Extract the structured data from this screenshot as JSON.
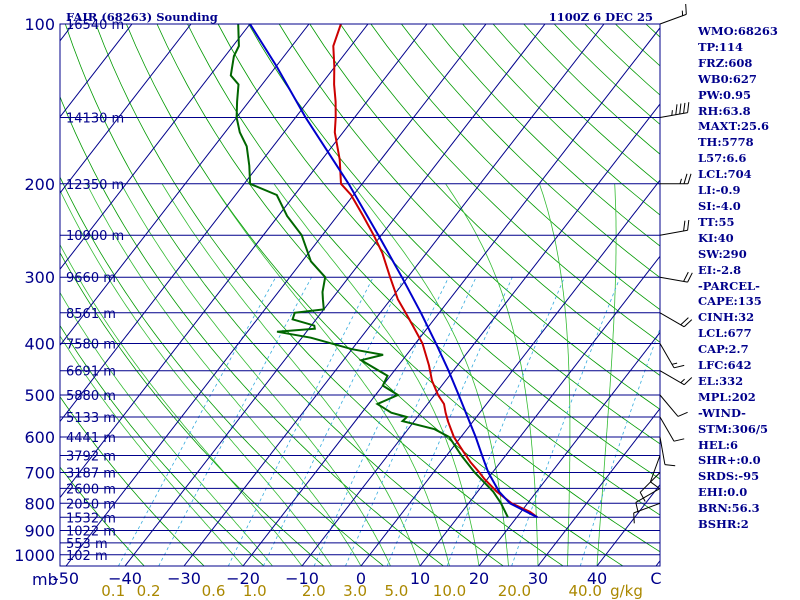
{
  "header": {
    "title": "FAIR (68263) Sounding",
    "time": "1100Z  6 DEC 25"
  },
  "colors": {
    "background": "#ffffff",
    "frame": "#00008b",
    "isobar": "#00008b",
    "isotherm": "#00008b",
    "dry_adiabat": "#009900",
    "moist_adiabat": "#33bb33",
    "mixing_ratio": "#33aadd",
    "temperature": "#cc0000",
    "dewpoint": "#006600",
    "parcel": "#0000cc",
    "axis_text": "#00008b",
    "mixing_ratio_text": "#aa8800",
    "wind": "#000000"
  },
  "chart_data": {
    "type": "line",
    "title": "FAIR (68263) Sounding",
    "subtitle": "1100Z  6 DEC 25",
    "xlabel": "C",
    "ylabel": "mb",
    "xlim": [
      -50,
      50
    ],
    "ylim": [
      1000,
      100
    ],
    "pressure_ticks": [
      100,
      200,
      300,
      400,
      500,
      600,
      700,
      800,
      900,
      1000
    ],
    "temperature_ticks": [
      -50,
      -40,
      -30,
      -20,
      -10,
      0,
      10,
      20,
      30,
      40
    ],
    "temperature_tick_labels": [
      "-50",
      "−40",
      "−30",
      "−20",
      "−10",
      "0",
      "10",
      "20",
      "30",
      "40"
    ],
    "mixing_ratio_labels": [
      {
        "text": "0.1",
        "t": -42
      },
      {
        "text": "0.2",
        "t": -36
      },
      {
        "text": "0.6",
        "t": -25
      },
      {
        "text": "1.0",
        "t": -18
      },
      {
        "text": "2.0",
        "t": -8
      },
      {
        "text": "3.0",
        "t": -1
      },
      {
        "text": "5.0",
        "t": 6
      },
      {
        "text": "10.0",
        "t": 15
      },
      {
        "text": "20.0",
        "t": 26
      },
      {
        "text": "40.0",
        "t": 38
      },
      {
        "text": "g/kg",
        "t": 45
      }
    ],
    "height_labels": [
      {
        "p": 100,
        "text": "16540 m"
      },
      {
        "p": 150,
        "text": "14130 m"
      },
      {
        "p": 200,
        "text": "12350 m"
      },
      {
        "p": 250,
        "text": "10900 m"
      },
      {
        "p": 300,
        "text": "9660 m"
      },
      {
        "p": 350,
        "text": "8561 m"
      },
      {
        "p": 400,
        "text": "7580 m"
      },
      {
        "p": 450,
        "text": "6691 m"
      },
      {
        "p": 500,
        "text": "5880 m"
      },
      {
        "p": 550,
        "text": "5133 m"
      },
      {
        "p": 600,
        "text": "4441 m"
      },
      {
        "p": 650,
        "text": "3792 m"
      },
      {
        "p": 700,
        "text": "3187 m"
      },
      {
        "p": 750,
        "text": "2600 m"
      },
      {
        "p": 800,
        "text": "2050 m"
      },
      {
        "p": 850,
        "text": "1532 m"
      },
      {
        "p": 900,
        "text": "1022 m"
      },
      {
        "p": 950,
        "text": "553 m"
      },
      {
        "p": 1000,
        "text": "102 m"
      }
    ],
    "series": [
      {
        "name": "Temperature",
        "color": "#cc0000",
        "points": [
          [
            850,
            23.5
          ],
          [
            830,
            21.5
          ],
          [
            800,
            17.3
          ],
          [
            760,
            13.2
          ],
          [
            720,
            9.5
          ],
          [
            700,
            7.8
          ],
          [
            670,
            5.0
          ],
          [
            640,
            2.4
          ],
          [
            600,
            -1.2
          ],
          [
            560,
            -4.3
          ],
          [
            540,
            -5.8
          ],
          [
            520,
            -7.2
          ],
          [
            500,
            -9.4
          ],
          [
            470,
            -12.3
          ],
          [
            440,
            -14.8
          ],
          [
            400,
            -18.8
          ],
          [
            370,
            -22.8
          ],
          [
            350,
            -25.7
          ],
          [
            330,
            -28.8
          ],
          [
            300,
            -33.0
          ],
          [
            270,
            -37.5
          ],
          [
            250,
            -41.3
          ],
          [
            230,
            -45.6
          ],
          [
            210,
            -50.4
          ],
          [
            200,
            -53.6
          ],
          [
            180,
            -57.0
          ],
          [
            160,
            -61.4
          ],
          [
            150,
            -63.2
          ],
          [
            140,
            -65.3
          ],
          [
            130,
            -67.8
          ],
          [
            120,
            -70.2
          ],
          [
            110,
            -73.0
          ],
          [
            100,
            -74.6
          ]
        ]
      },
      {
        "name": "Dewpoint",
        "color": "#006600",
        "points": [
          [
            850,
            18.5
          ],
          [
            800,
            15.5
          ],
          [
            760,
            12.6
          ],
          [
            700,
            7.0
          ],
          [
            650,
            2.5
          ],
          [
            600,
            -2.0
          ],
          [
            580,
            -5.5
          ],
          [
            560,
            -12.0
          ],
          [
            550,
            -11.8
          ],
          [
            540,
            -15.0
          ],
          [
            520,
            -18.5
          ],
          [
            500,
            -16.2
          ],
          [
            480,
            -20.0
          ],
          [
            460,
            -20.5
          ],
          [
            430,
            -27.0
          ],
          [
            420,
            -24.0
          ],
          [
            410,
            -30.0
          ],
          [
            390,
            -38.5
          ],
          [
            380,
            -45.0
          ],
          [
            375,
            -39.0
          ],
          [
            370,
            -39.5
          ],
          [
            360,
            -44.0
          ],
          [
            350,
            -44.5
          ],
          [
            345,
            -40.0
          ],
          [
            330,
            -41.5
          ],
          [
            320,
            -42.5
          ],
          [
            300,
            -44.0
          ],
          [
            280,
            -48.5
          ],
          [
            250,
            -53.5
          ],
          [
            230,
            -58.5
          ],
          [
            210,
            -63.0
          ],
          [
            200,
            -69.0
          ],
          [
            185,
            -71.5
          ],
          [
            170,
            -74.5
          ],
          [
            160,
            -77.5
          ],
          [
            150,
            -80.0
          ],
          [
            140,
            -82.0
          ],
          [
            130,
            -84.0
          ],
          [
            125,
            -86.5
          ],
          [
            115,
            -88.5
          ],
          [
            110,
            -89.0
          ],
          [
            100,
            -92.0
          ]
        ]
      },
      {
        "name": "Parcel",
        "color": "#0000cc",
        "points": [
          [
            850,
            23.5
          ],
          [
            800,
            17.0
          ],
          [
            760,
            13.6
          ],
          [
            700,
            9.3
          ],
          [
            650,
            6.0
          ],
          [
            600,
            2.5
          ],
          [
            550,
            -1.5
          ],
          [
            500,
            -5.9
          ],
          [
            450,
            -10.8
          ],
          [
            400,
            -16.5
          ],
          [
            350,
            -23.1
          ],
          [
            300,
            -31.0
          ],
          [
            250,
            -40.5
          ],
          [
            200,
            -52.3
          ],
          [
            150,
            -68.3
          ],
          [
            120,
            -80.0
          ],
          [
            100,
            -90.0
          ]
        ]
      }
    ],
    "wind_barbs": [
      {
        "p": 100,
        "dir": 250,
        "kt": 15
      },
      {
        "p": 150,
        "dir": 260,
        "kt": 45
      },
      {
        "p": 200,
        "dir": 270,
        "kt": 25
      },
      {
        "p": 250,
        "dir": 260,
        "kt": 20
      },
      {
        "p": 300,
        "dir": 280,
        "kt": 20
      },
      {
        "p": 350,
        "dir": 300,
        "kt": 20
      },
      {
        "p": 400,
        "dir": 330,
        "kt": 15
      },
      {
        "p": 450,
        "dir": 300,
        "kt": 15
      },
      {
        "p": 500,
        "dir": 320,
        "kt": 10
      },
      {
        "p": 550,
        "dir": 330,
        "kt": 10
      },
      {
        "p": 600,
        "dir": 350,
        "kt": 10
      },
      {
        "p": 650,
        "dir": 20,
        "kt": 10
      },
      {
        "p": 700,
        "dir": 45,
        "kt": 10
      },
      {
        "p": 750,
        "dir": 60,
        "kt": 10
      },
      {
        "p": 800,
        "dir": 70,
        "kt": 10
      }
    ]
  },
  "indices": [
    "WMO:68263",
    "TP:114",
    "FRZ:608",
    "WB0:627",
    "PW:0.95",
    "RH:63.8",
    "MAXT:25.6",
    "TH:5778",
    "L57:6.6",
    "LCL:704",
    "LI:-0.9",
    "SI:-4.0",
    "TT:55",
    "KI:40",
    "SW:290",
    "EI:-2.8",
    "-PARCEL-",
    "CAPE:135",
    "CINH:32",
    "LCL:677",
    "CAP:2.7",
    "LFC:642",
    "EL:332",
    "MPL:202",
    "-WIND-",
    "STM:306/5",
    "HEL:6",
    "SHR+:0.0",
    "SRDS:-95",
    "EHI:0.0",
    "BRN:56.3",
    "BSHR:2"
  ]
}
